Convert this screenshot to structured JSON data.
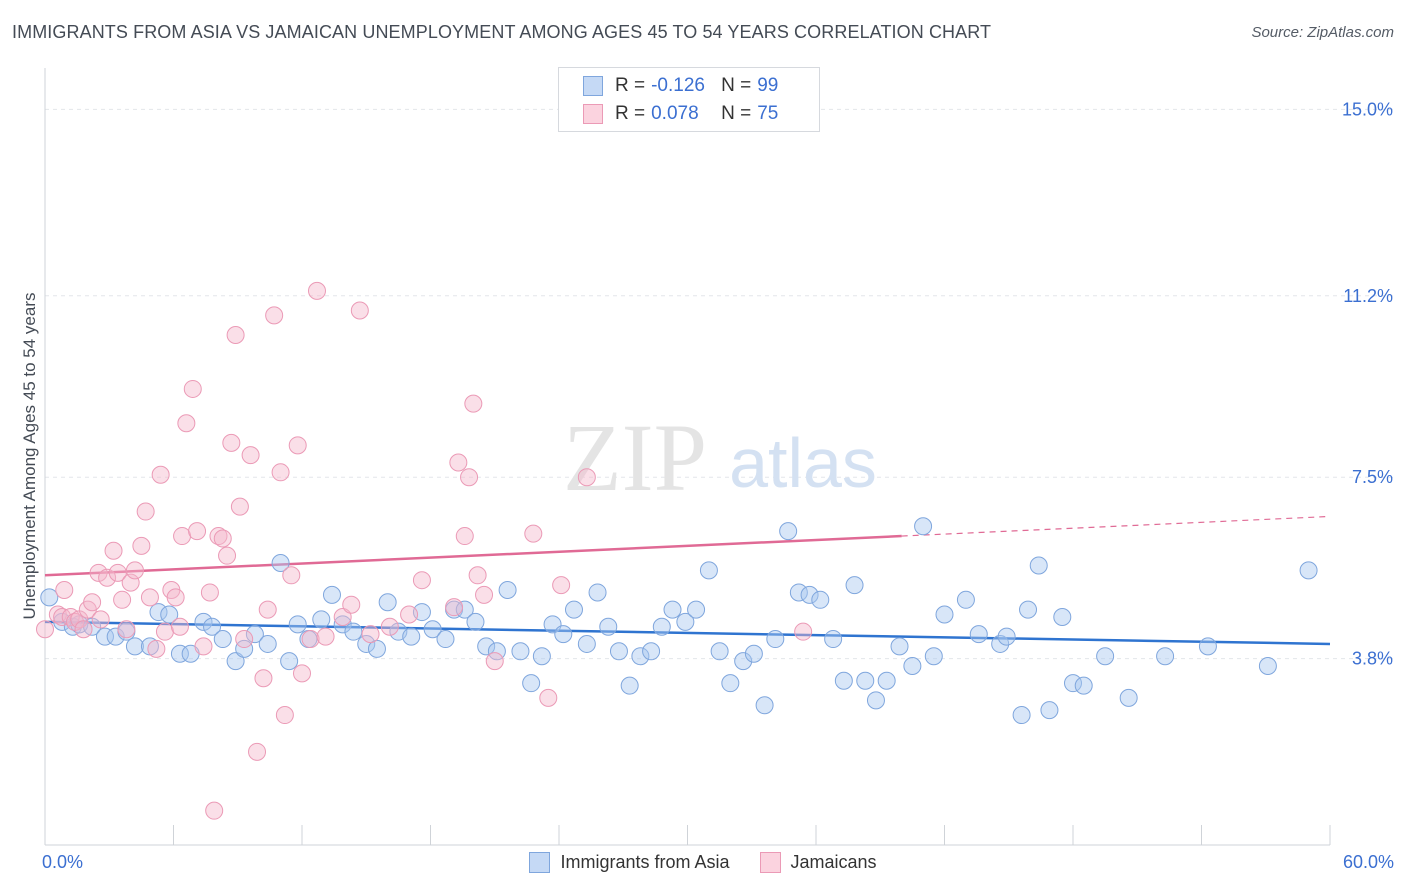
{
  "header": {
    "title": "IMMIGRANTS FROM ASIA VS JAMAICAN UNEMPLOYMENT AMONG AGES 45 TO 54 YEARS CORRELATION CHART",
    "source": "Source: ZipAtlas.com"
  },
  "watermark": {
    "zip": "ZIP",
    "atlas": "atlas"
  },
  "legend": {
    "rows": [
      {
        "r_label": "R =",
        "r_value": "-0.126",
        "n_label": "N =",
        "n_value": "99",
        "color": "#a9c7f0"
      },
      {
        "r_label": "R =",
        "r_value": "0.078",
        "n_label": "N =",
        "n_value": "75",
        "color": "#f5b9cd"
      }
    ]
  },
  "bottom_legend": {
    "items": [
      {
        "label": "Immigrants from Asia",
        "color": "#a9c7f0"
      },
      {
        "label": "Jamaicans",
        "color": "#f5b9cd"
      }
    ]
  },
  "chart_data": {
    "type": "scatter",
    "title": "IMMIGRANTS FROM ASIA VS JAMAICAN UNEMPLOYMENT AMONG AGES 45 TO 54 YEARS CORRELATION CHART",
    "xlabel": "",
    "ylabel": "Unemployment Among Ages 45 to 54 years",
    "xlim": [
      0,
      60
    ],
    "ylim": [
      0,
      15.6
    ],
    "x_tick_labels": [
      "0.0%",
      "60.0%"
    ],
    "y_ticks": [
      3.8,
      7.5,
      11.2,
      15.0
    ],
    "y_tick_labels": [
      "3.8%",
      "7.5%",
      "11.2%",
      "15.0%"
    ],
    "grid": true,
    "legend_position": "top-center",
    "series": [
      {
        "name": "Immigrants from Asia",
        "color": "#a9c7f0",
        "line_color": "#2f74d0",
        "trend": {
          "x": [
            0,
            60
          ],
          "y": [
            4.55,
            4.1
          ]
        },
        "points": [
          [
            0.2,
            5.05
          ],
          [
            0.8,
            4.55
          ],
          [
            1.3,
            4.45
          ],
          [
            1.6,
            4.5
          ],
          [
            2.2,
            4.45
          ],
          [
            2.8,
            4.25
          ],
          [
            3.3,
            4.25
          ],
          [
            3.8,
            4.35
          ],
          [
            4.2,
            4.05
          ],
          [
            4.9,
            4.05
          ],
          [
            5.3,
            4.75
          ],
          [
            5.8,
            4.7
          ],
          [
            6.3,
            3.9
          ],
          [
            6.8,
            3.9
          ],
          [
            7.4,
            4.55
          ],
          [
            7.8,
            4.45
          ],
          [
            8.3,
            4.2
          ],
          [
            8.9,
            3.75
          ],
          [
            9.3,
            4.0
          ],
          [
            9.8,
            4.3
          ],
          [
            10.4,
            4.1
          ],
          [
            11.0,
            5.75
          ],
          [
            11.4,
            3.75
          ],
          [
            11.8,
            4.5
          ],
          [
            12.3,
            4.2
          ],
          [
            12.9,
            4.6
          ],
          [
            13.4,
            5.1
          ],
          [
            13.9,
            4.5
          ],
          [
            14.4,
            4.35
          ],
          [
            15.0,
            4.1
          ],
          [
            15.5,
            4.0
          ],
          [
            16.0,
            4.95
          ],
          [
            16.5,
            4.35
          ],
          [
            17.1,
            4.25
          ],
          [
            17.6,
            4.75
          ],
          [
            18.1,
            4.4
          ],
          [
            18.7,
            4.2
          ],
          [
            19.1,
            4.8
          ],
          [
            19.6,
            4.8
          ],
          [
            20.1,
            4.55
          ],
          [
            20.6,
            4.05
          ],
          [
            21.1,
            3.95
          ],
          [
            21.6,
            5.2
          ],
          [
            22.2,
            3.95
          ],
          [
            22.7,
            3.3
          ],
          [
            23.2,
            3.85
          ],
          [
            23.7,
            4.5
          ],
          [
            24.2,
            4.3
          ],
          [
            24.7,
            4.8
          ],
          [
            25.3,
            4.1
          ],
          [
            25.8,
            5.15
          ],
          [
            26.3,
            4.45
          ],
          [
            26.8,
            3.95
          ],
          [
            27.3,
            3.25
          ],
          [
            27.8,
            3.85
          ],
          [
            28.3,
            3.95
          ],
          [
            28.8,
            4.45
          ],
          [
            29.3,
            4.8
          ],
          [
            29.9,
            4.55
          ],
          [
            30.4,
            4.8
          ],
          [
            31.0,
            5.6
          ],
          [
            31.5,
            3.95
          ],
          [
            32.0,
            3.3
          ],
          [
            32.6,
            3.75
          ],
          [
            33.1,
            3.9
          ],
          [
            33.6,
            2.85
          ],
          [
            34.1,
            4.2
          ],
          [
            34.7,
            6.4
          ],
          [
            35.2,
            5.15
          ],
          [
            35.7,
            5.1
          ],
          [
            36.2,
            5.0
          ],
          [
            36.8,
            4.2
          ],
          [
            37.3,
            3.35
          ],
          [
            37.8,
            5.3
          ],
          [
            38.3,
            3.35
          ],
          [
            38.8,
            2.95
          ],
          [
            39.3,
            3.35
          ],
          [
            39.9,
            4.05
          ],
          [
            40.5,
            3.65
          ],
          [
            41.0,
            6.5
          ],
          [
            41.5,
            3.85
          ],
          [
            42.0,
            4.7
          ],
          [
            43.0,
            5.0
          ],
          [
            43.6,
            4.3
          ],
          [
            44.6,
            4.1
          ],
          [
            44.9,
            4.25
          ],
          [
            45.6,
            2.65
          ],
          [
            45.9,
            4.8
          ],
          [
            46.4,
            5.7
          ],
          [
            46.9,
            2.75
          ],
          [
            47.5,
            4.65
          ],
          [
            48.0,
            3.3
          ],
          [
            48.5,
            3.25
          ],
          [
            49.5,
            3.85
          ],
          [
            50.6,
            3.0
          ],
          [
            52.3,
            3.85
          ],
          [
            54.3,
            4.05
          ],
          [
            57.1,
            3.65
          ],
          [
            59.0,
            5.6
          ]
        ]
      },
      {
        "name": "Jamaicans",
        "color": "#f5b9cd",
        "line_color": "#e06a95",
        "trend": {
          "x": [
            0,
            40
          ],
          "y": [
            5.5,
            6.3
          ]
        },
        "trend_dashed": {
          "x": [
            40,
            60
          ],
          "y": [
            6.3,
            6.7
          ]
        },
        "points": [
          [
            0.0,
            4.4
          ],
          [
            0.6,
            4.7
          ],
          [
            0.8,
            4.65
          ],
          [
            0.9,
            5.2
          ],
          [
            1.2,
            4.65
          ],
          [
            1.4,
            4.55
          ],
          [
            1.6,
            4.6
          ],
          [
            1.8,
            4.4
          ],
          [
            2.0,
            4.8
          ],
          [
            2.2,
            4.95
          ],
          [
            2.5,
            5.55
          ],
          [
            2.6,
            4.6
          ],
          [
            2.9,
            5.45
          ],
          [
            3.2,
            6.0
          ],
          [
            3.4,
            5.55
          ],
          [
            3.6,
            5.0
          ],
          [
            3.8,
            4.4
          ],
          [
            4.0,
            5.35
          ],
          [
            4.2,
            5.6
          ],
          [
            4.5,
            6.1
          ],
          [
            4.7,
            6.8
          ],
          [
            4.9,
            5.05
          ],
          [
            5.2,
            4.0
          ],
          [
            5.4,
            7.55
          ],
          [
            5.6,
            4.35
          ],
          [
            5.9,
            5.2
          ],
          [
            6.1,
            5.05
          ],
          [
            6.3,
            4.45
          ],
          [
            6.4,
            6.3
          ],
          [
            6.6,
            8.6
          ],
          [
            6.9,
            9.3
          ],
          [
            7.1,
            6.4
          ],
          [
            7.4,
            4.05
          ],
          [
            7.7,
            5.15
          ],
          [
            7.9,
            0.7
          ],
          [
            8.1,
            6.3
          ],
          [
            8.3,
            6.25
          ],
          [
            8.5,
            5.9
          ],
          [
            8.7,
            8.2
          ],
          [
            8.9,
            10.4
          ],
          [
            9.1,
            6.9
          ],
          [
            9.3,
            4.2
          ],
          [
            9.6,
            7.95
          ],
          [
            9.9,
            1.9
          ],
          [
            10.2,
            3.4
          ],
          [
            10.4,
            4.8
          ],
          [
            10.7,
            10.8
          ],
          [
            11.0,
            7.6
          ],
          [
            11.2,
            2.65
          ],
          [
            11.5,
            5.5
          ],
          [
            11.8,
            8.15
          ],
          [
            12.0,
            3.5
          ],
          [
            12.4,
            4.2
          ],
          [
            12.7,
            11.3
          ],
          [
            13.1,
            4.25
          ],
          [
            13.9,
            4.65
          ],
          [
            14.3,
            4.9
          ],
          [
            14.7,
            10.9
          ],
          [
            15.2,
            4.3
          ],
          [
            16.1,
            4.45
          ],
          [
            17.0,
            4.7
          ],
          [
            17.6,
            5.4
          ],
          [
            19.1,
            4.85
          ],
          [
            19.3,
            7.8
          ],
          [
            19.6,
            6.3
          ],
          [
            19.8,
            7.5
          ],
          [
            20.0,
            9.0
          ],
          [
            20.2,
            5.5
          ],
          [
            20.5,
            5.1
          ],
          [
            21.0,
            3.75
          ],
          [
            22.8,
            6.35
          ],
          [
            23.5,
            3.0
          ],
          [
            24.1,
            5.3
          ],
          [
            25.3,
            7.5
          ],
          [
            35.4,
            4.35
          ]
        ]
      }
    ]
  }
}
